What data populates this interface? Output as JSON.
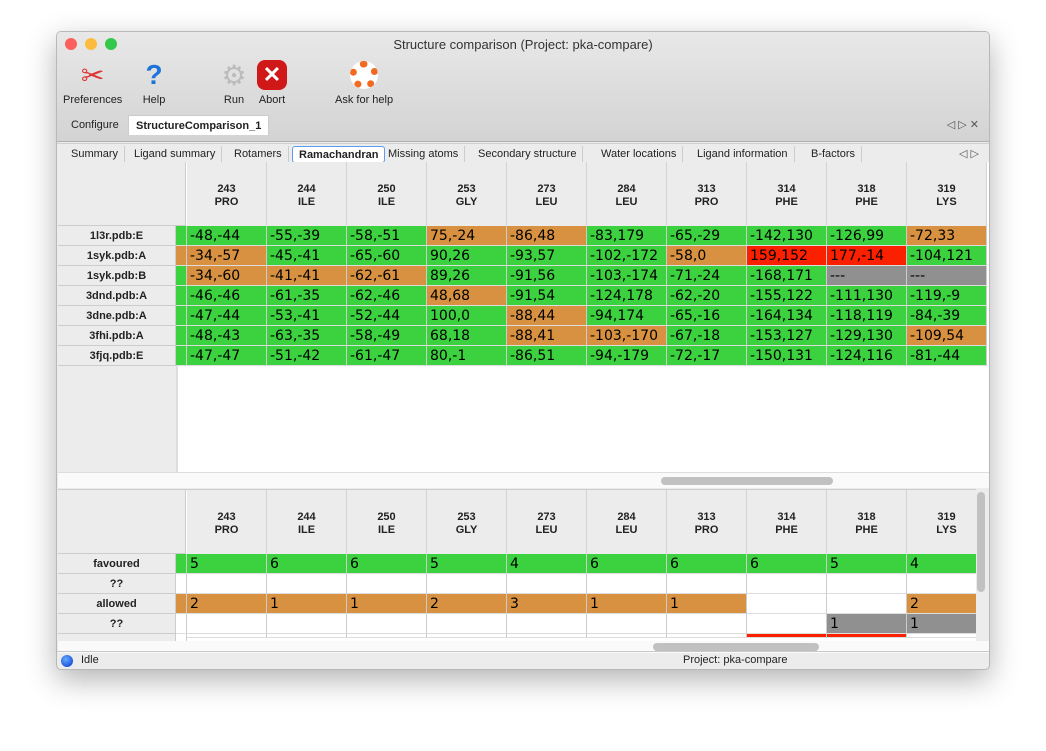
{
  "window": {
    "title": "Structure comparison (Project: pka-compare)"
  },
  "toolbar": [
    {
      "label": "Preferences",
      "icon": "tools-icon"
    },
    {
      "label": "Help",
      "icon": "help-icon"
    },
    {
      "label": "Run",
      "icon": "gear-icon"
    },
    {
      "label": "Abort",
      "icon": "abort-icon"
    },
    {
      "label": "Ask for help",
      "icon": "lifebuoy-icon"
    }
  ],
  "tabs": [
    "Configure",
    "StructureComparison_1"
  ],
  "active_tab": "StructureComparison_1",
  "subtabs": [
    "Summary",
    "Ligand summary",
    "Rotamers",
    "Ramachandran",
    "Missing atoms",
    "Secondary structure",
    "Water locations",
    "Ligand information",
    "B-factors"
  ],
  "active_subtab": "Ramachandran",
  "colors": {
    "favoured": "#3bd13f",
    "allowed": "#d79140",
    "outlier": "#fb2000",
    "missing": "#909090"
  },
  "residues": [
    [
      "243",
      "PRO"
    ],
    [
      "244",
      "ILE"
    ],
    [
      "250",
      "ILE"
    ],
    [
      "253",
      "GLY"
    ],
    [
      "273",
      "LEU"
    ],
    [
      "284",
      "LEU"
    ],
    [
      "313",
      "PRO"
    ],
    [
      "314",
      "PHE"
    ],
    [
      "318",
      "PHE"
    ],
    [
      "319",
      "LYS"
    ]
  ],
  "top_table": {
    "rows": [
      {
        "label": "1l3r.pdb:E",
        "lead": "g",
        "cells": [
          [
            "-48,-44",
            "g"
          ],
          [
            "-55,-39",
            "g"
          ],
          [
            "-58,-51",
            "g"
          ],
          [
            "75,-24",
            "o"
          ],
          [
            "-86,48",
            "o"
          ],
          [
            "-83,179",
            "g"
          ],
          [
            "-65,-29",
            "g"
          ],
          [
            "-142,130",
            "g"
          ],
          [
            "-126,99",
            "g"
          ],
          [
            "-72,33",
            "o"
          ]
        ]
      },
      {
        "label": "1syk.pdb:A",
        "lead": "o",
        "cells": [
          [
            "-34,-57",
            "o"
          ],
          [
            "-45,-41",
            "g"
          ],
          [
            "-65,-60",
            "g"
          ],
          [
            "90,26",
            "g"
          ],
          [
            "-93,57",
            "g"
          ],
          [
            "-102,-172",
            "g"
          ],
          [
            "-58,0",
            "o"
          ],
          [
            "159,152",
            "r"
          ],
          [
            "177,-14",
            "r"
          ],
          [
            "-104,121",
            "g"
          ]
        ]
      },
      {
        "label": "1syk.pdb:B",
        "lead": "g",
        "cells": [
          [
            "-34,-60",
            "o"
          ],
          [
            "-41,-41",
            "o"
          ],
          [
            "-62,-61",
            "o"
          ],
          [
            "89,26",
            "g"
          ],
          [
            "-91,56",
            "g"
          ],
          [
            "-103,-174",
            "g"
          ],
          [
            "-71,-24",
            "g"
          ],
          [
            "-168,171",
            "g"
          ],
          [
            "---",
            "m"
          ],
          [
            "---",
            "m"
          ]
        ]
      },
      {
        "label": "3dnd.pdb:A",
        "lead": "g",
        "cells": [
          [
            "-46,-46",
            "g"
          ],
          [
            "-61,-35",
            "g"
          ],
          [
            "-62,-46",
            "g"
          ],
          [
            "48,68",
            "o"
          ],
          [
            "-91,54",
            "g"
          ],
          [
            "-124,178",
            "g"
          ],
          [
            "-62,-20",
            "g"
          ],
          [
            "-155,122",
            "g"
          ],
          [
            "-111,130",
            "g"
          ],
          [
            "-119,-9",
            "g"
          ]
        ]
      },
      {
        "label": "3dne.pdb:A",
        "lead": "g",
        "cells": [
          [
            "-47,-44",
            "g"
          ],
          [
            "-53,-41",
            "g"
          ],
          [
            "-52,-44",
            "g"
          ],
          [
            "100,0",
            "g"
          ],
          [
            "-88,44",
            "o"
          ],
          [
            "-94,174",
            "g"
          ],
          [
            "-65,-16",
            "g"
          ],
          [
            "-164,134",
            "g"
          ],
          [
            "-118,119",
            "g"
          ],
          [
            "-84,-39",
            "g"
          ]
        ]
      },
      {
        "label": "3fhi.pdb:A",
        "lead": "g",
        "cells": [
          [
            "-48,-43",
            "g"
          ],
          [
            "-63,-35",
            "g"
          ],
          [
            "-58,-49",
            "g"
          ],
          [
            "68,18",
            "g"
          ],
          [
            "-88,41",
            "o"
          ],
          [
            "-103,-170",
            "o"
          ],
          [
            "-67,-18",
            "g"
          ],
          [
            "-153,127",
            "g"
          ],
          [
            "-129,130",
            "g"
          ],
          [
            "-109,54",
            "o"
          ]
        ]
      },
      {
        "label": "3fjq.pdb:E",
        "lead": "g",
        "cells": [
          [
            "-47,-47",
            "g"
          ],
          [
            "-51,-42",
            "g"
          ],
          [
            "-61,-47",
            "g"
          ],
          [
            "80,-1",
            "g"
          ],
          [
            "-86,51",
            "g"
          ],
          [
            "-94,-179",
            "g"
          ],
          [
            "-72,-17",
            "g"
          ],
          [
            "-150,131",
            "g"
          ],
          [
            "-124,116",
            "g"
          ],
          [
            "-81,-44",
            "g"
          ]
        ]
      }
    ]
  },
  "bottom_table": {
    "rows": [
      {
        "label": "favoured",
        "cells": [
          [
            "5",
            "g"
          ],
          [
            "6",
            "g"
          ],
          [
            "6",
            "g"
          ],
          [
            "5",
            "g"
          ],
          [
            "4",
            "g"
          ],
          [
            "6",
            "g"
          ],
          [
            "6",
            "g"
          ],
          [
            "6",
            "g"
          ],
          [
            "5",
            "g"
          ],
          [
            "4",
            "g"
          ]
        ]
      },
      {
        "label": "??",
        "cells": [
          [
            "",
            "w"
          ],
          [
            "",
            "w"
          ],
          [
            "",
            "w"
          ],
          [
            "",
            "w"
          ],
          [
            "",
            "w"
          ],
          [
            "",
            "w"
          ],
          [
            "",
            "w"
          ],
          [
            "",
            "w"
          ],
          [
            "",
            "w"
          ],
          [
            "",
            "w"
          ]
        ]
      },
      {
        "label": "allowed",
        "cells": [
          [
            "2",
            "o"
          ],
          [
            "1",
            "o"
          ],
          [
            "1",
            "o"
          ],
          [
            "2",
            "o"
          ],
          [
            "3",
            "o"
          ],
          [
            "1",
            "o"
          ],
          [
            "1",
            "o"
          ],
          [
            "",
            "w"
          ],
          [
            "",
            "w"
          ],
          [
            "2",
            "o"
          ]
        ]
      },
      {
        "label": "??",
        "cells": [
          [
            "",
            "w"
          ],
          [
            "",
            "w"
          ],
          [
            "",
            "w"
          ],
          [
            "",
            "w"
          ],
          [
            "",
            "w"
          ],
          [
            "",
            "w"
          ],
          [
            "",
            "w"
          ],
          [
            "",
            "w"
          ],
          [
            "1",
            "m"
          ],
          [
            "1",
            "m"
          ]
        ]
      },
      {
        "label": "",
        "cells": [
          [
            "",
            "w"
          ],
          [
            "",
            "w"
          ],
          [
            "",
            "w"
          ],
          [
            "",
            "w"
          ],
          [
            "",
            "w"
          ],
          [
            "",
            "w"
          ],
          [
            "",
            "w"
          ],
          [
            "",
            "r"
          ],
          [
            "",
            "r"
          ],
          [
            "",
            "w"
          ]
        ]
      }
    ]
  },
  "status": {
    "state": "Idle",
    "project": "Project: pka-compare"
  }
}
